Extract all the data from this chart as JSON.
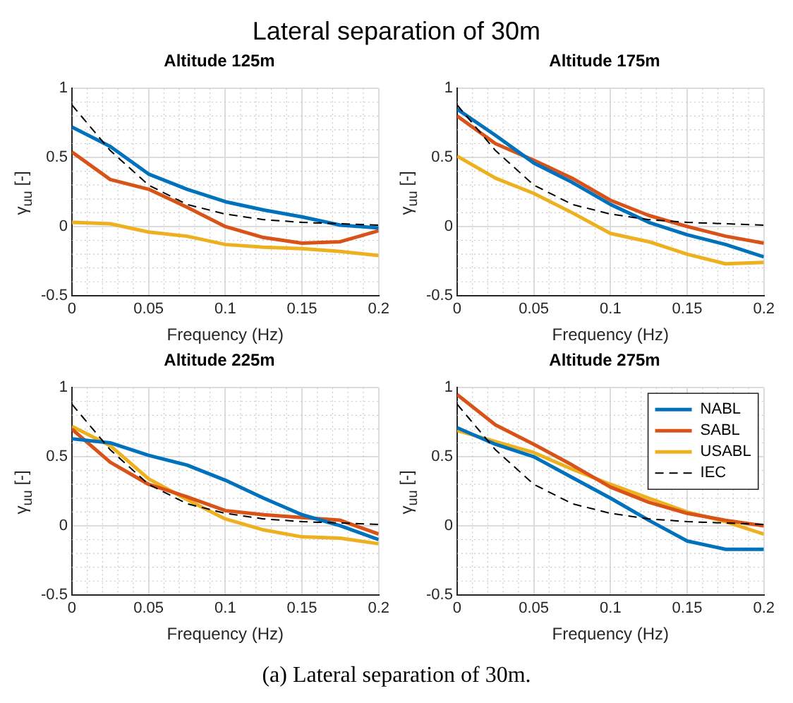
{
  "chart_data": [
    {
      "type": "line",
      "title": "Altitude 125m",
      "xlabel": "Frequency (Hz)",
      "ylabel": "γ$_{uu}$ [-]",
      "annotations": [
        "Lateral separation of 30m"
      ],
      "x": [
        0,
        0.025,
        0.05,
        0.075,
        0.1,
        0.125,
        0.15,
        0.175,
        0.2
      ],
      "xlim": [
        0,
        0.2
      ],
      "xticks": [
        0,
        0.05,
        0.1,
        0.15,
        0.2
      ],
      "ylim": [
        -0.5,
        1
      ],
      "yticks": [
        -0.5,
        0,
        0.5,
        1
      ],
      "grid": true,
      "legend": false,
      "marker": "none",
      "series": [
        {
          "color": "#0072bd",
          "values": [
            0.72,
            0.58,
            0.38,
            0.27,
            0.18,
            0.12,
            0.07,
            0.01,
            -0.01
          ]
        },
        {
          "color": "#d95319",
          "values": [
            0.54,
            0.34,
            0.27,
            0.14,
            0.0,
            -0.08,
            -0.12,
            -0.11,
            -0.03
          ]
        },
        {
          "color": "#edb120",
          "values": [
            0.03,
            0.02,
            -0.04,
            -0.07,
            -0.13,
            -0.15,
            -0.16,
            -0.18,
            -0.21
          ]
        },
        {
          "color": "#000000",
          "line_style": "dashed",
          "values": [
            0.88,
            0.55,
            0.3,
            0.16,
            0.09,
            0.05,
            0.03,
            0.02,
            0.01
          ]
        }
      ]
    },
    {
      "type": "line",
      "title": "Altitude 175m",
      "xlabel": "Frequency (Hz)",
      "ylabel": "γ$_{uu}$ [-]",
      "x": [
        0,
        0.025,
        0.05,
        0.075,
        0.1,
        0.125,
        0.15,
        0.175,
        0.2
      ],
      "xlim": [
        0,
        0.2
      ],
      "xticks": [
        0,
        0.05,
        0.1,
        0.15,
        0.2
      ],
      "ylim": [
        -0.5,
        1
      ],
      "yticks": [
        -0.5,
        0,
        0.5,
        1
      ],
      "grid": true,
      "legend": false,
      "marker": "none",
      "series": [
        {
          "color": "#0072bd",
          "values": [
            0.85,
            0.66,
            0.46,
            0.32,
            0.16,
            0.03,
            -0.06,
            -0.13,
            -0.22
          ]
        },
        {
          "color": "#d95319",
          "values": [
            0.8,
            0.6,
            0.48,
            0.35,
            0.19,
            0.08,
            0.0,
            -0.07,
            -0.12
          ]
        },
        {
          "color": "#edb120",
          "values": [
            0.51,
            0.35,
            0.24,
            0.1,
            -0.05,
            -0.11,
            -0.2,
            -0.27,
            -0.26
          ]
        },
        {
          "color": "#000000",
          "line_style": "dashed",
          "values": [
            0.88,
            0.55,
            0.3,
            0.16,
            0.09,
            0.05,
            0.03,
            0.02,
            0.01
          ]
        }
      ]
    },
    {
      "type": "line",
      "title": "Altitude 225m",
      "xlabel": "Frequency (Hz)",
      "ylabel": "γ$_{uu}$ [-]",
      "x": [
        0,
        0.025,
        0.05,
        0.075,
        0.1,
        0.125,
        0.15,
        0.175,
        0.2
      ],
      "xlim": [
        0,
        0.2
      ],
      "xticks": [
        0,
        0.05,
        0.1,
        0.15,
        0.2
      ],
      "ylim": [
        -0.5,
        1
      ],
      "yticks": [
        -0.5,
        0,
        0.5,
        1
      ],
      "grid": true,
      "legend": false,
      "marker": "none",
      "series": [
        {
          "color": "#0072bd",
          "values": [
            0.63,
            0.6,
            0.51,
            0.44,
            0.33,
            0.2,
            0.08,
            0.0,
            -0.1
          ]
        },
        {
          "color": "#d95319",
          "values": [
            0.7,
            0.46,
            0.3,
            0.21,
            0.11,
            0.08,
            0.06,
            0.04,
            -0.06
          ]
        },
        {
          "color": "#edb120",
          "values": [
            0.72,
            0.58,
            0.34,
            0.19,
            0.05,
            -0.03,
            -0.08,
            -0.09,
            -0.13
          ]
        },
        {
          "color": "#000000",
          "line_style": "dashed",
          "values": [
            0.88,
            0.55,
            0.3,
            0.16,
            0.09,
            0.05,
            0.03,
            0.02,
            0.01
          ]
        }
      ]
    },
    {
      "type": "line",
      "title": "Altitude 275m",
      "xlabel": "Frequency (Hz)",
      "ylabel": "γ$_{uu}$ [-]",
      "annotations": [
        "(a) Lateral separation of 30m."
      ],
      "x": [
        0,
        0.025,
        0.05,
        0.075,
        0.1,
        0.125,
        0.15,
        0.175,
        0.2
      ],
      "xlim": [
        0,
        0.2
      ],
      "xticks": [
        0,
        0.05,
        0.1,
        0.15,
        0.2
      ],
      "ylim": [
        -0.5,
        1
      ],
      "yticks": [
        -0.5,
        0,
        0.5,
        1
      ],
      "grid": true,
      "legend": "top right",
      "marker": "none",
      "series": [
        {
          "name": "NABL",
          "color": "#0072bd",
          "values": [
            0.71,
            0.59,
            0.5,
            0.35,
            0.2,
            0.04,
            -0.11,
            -0.17,
            -0.17
          ]
        },
        {
          "name": "SABL",
          "color": "#d95319",
          "values": [
            0.95,
            0.73,
            0.59,
            0.44,
            0.28,
            0.17,
            0.09,
            0.04,
            0.0
          ]
        },
        {
          "name": "USABL",
          "color": "#edb120",
          "values": [
            0.69,
            0.61,
            0.53,
            0.41,
            0.3,
            0.2,
            0.1,
            0.03,
            -0.06
          ]
        },
        {
          "name": "IEC",
          "color": "#000000",
          "line_style": "dashed",
          "values": [
            0.88,
            0.55,
            0.3,
            0.16,
            0.09,
            0.05,
            0.03,
            0.02,
            0.01
          ]
        }
      ]
    }
  ]
}
